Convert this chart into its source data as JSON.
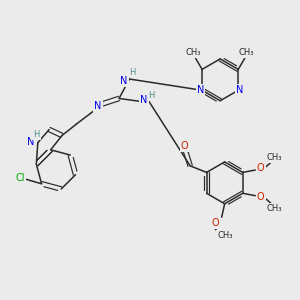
{
  "bg_color": "#ebebeb",
  "bond_color": "#2a2a2a",
  "N_color": "#0000ee",
  "O_color": "#cc2200",
  "Cl_color": "#00aa00",
  "H_color": "#4a9090",
  "figsize": [
    3.0,
    3.0
  ],
  "dpi": 100,
  "xlim": [
    0,
    10
  ],
  "ylim": [
    0,
    10
  ]
}
